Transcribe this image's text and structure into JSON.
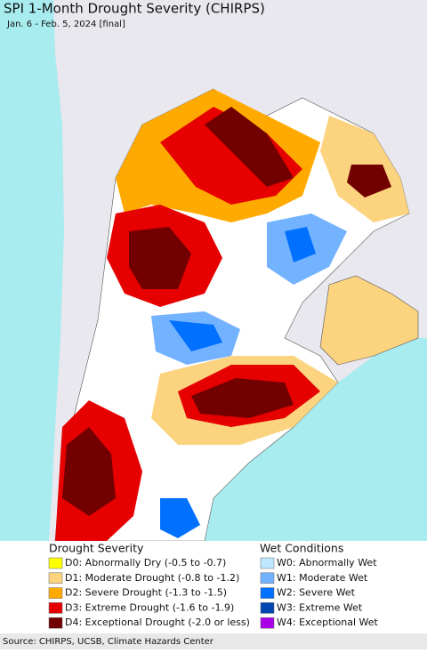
{
  "header": {
    "title": "SPI 1-Month Drought Severity (CHIRPS)",
    "subtitle": "Jan. 6 - Feb. 5, 2024 [final]"
  },
  "legend": {
    "drought": {
      "title": "Drought Severity",
      "items": [
        {
          "label": "D0: Abnormally Dry (-0.5 to -0.7)",
          "color": "#ffff00"
        },
        {
          "label": "D1: Moderate Drought (-0.8 to -1.2)",
          "color": "#fcd37f"
        },
        {
          "label": "D2: Severe Drought (-1.3 to -1.5)",
          "color": "#ffaa00"
        },
        {
          "label": "D3: Extreme Drought (-1.6 to -1.9)",
          "color": "#e60000"
        },
        {
          "label": "D4: Exceptional Drought (-2.0 or less)",
          "color": "#730000"
        }
      ]
    },
    "wet": {
      "title": "Wet Conditions",
      "items": [
        {
          "label": "W0: Abnormally Wet",
          "color": "#bee8ff"
        },
        {
          "label": "W1: Moderate Wet",
          "color": "#73b2ff"
        },
        {
          "label": "W2: Severe Wet",
          "color": "#0070ff"
        },
        {
          "label": "W3: Extreme Wet",
          "color": "#0045b0"
        },
        {
          "label": "W4: Exceptional Wet",
          "color": "#a900e6"
        }
      ]
    }
  },
  "footer": {
    "source": "Source: CHIRPS, UCSB, Climate Hazards Center"
  }
}
